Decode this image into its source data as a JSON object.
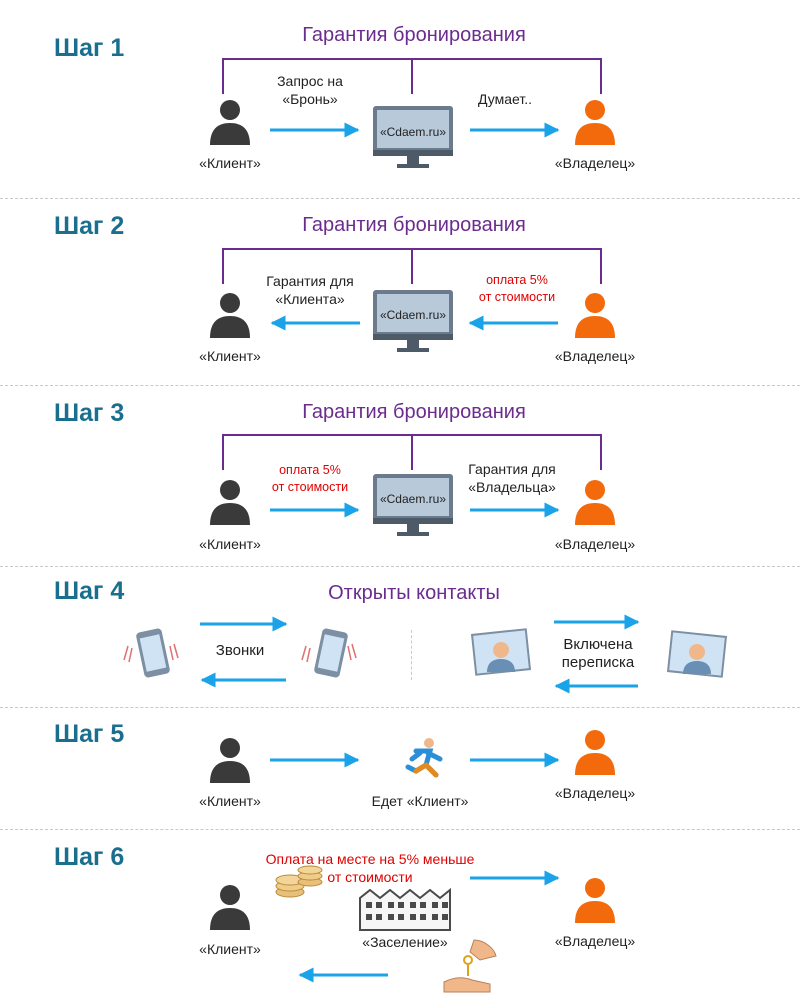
{
  "steps": [
    {
      "label": "Шаг 1",
      "title": "Гарантия бронирования",
      "left_text": [
        "Запрос на",
        "«Бронь»"
      ],
      "right_text": "Думает..",
      "client": "«Клиент»",
      "owner": "«Владелец»",
      "monitor": "«Cdaem.ru»"
    },
    {
      "label": "Шаг 2",
      "title": "Гарантия бронирования",
      "left_text": [
        "Гарантия для",
        "«Клиента»"
      ],
      "right_text": [
        "оплата 5%",
        "от стоимости"
      ],
      "client": "«Клиент»",
      "owner": "«Владелец»",
      "monitor": "«Cdaem.ru»"
    },
    {
      "label": "Шаг 3",
      "title": "Гарантия бронирования",
      "left_text": [
        "оплата 5%",
        "от стоимости"
      ],
      "right_text": [
        "Гарантия для",
        "«Владельца»"
      ],
      "client": "«Клиент»",
      "owner": "«Владелец»",
      "monitor": "«Cdaem.ru»"
    },
    {
      "label": "Шаг 4",
      "title": "Открыты контакты",
      "left_text": "Звонки",
      "right_text": [
        "Включена",
        "переписка"
      ]
    },
    {
      "label": "Шаг 5",
      "mid_text": "Едет «Клиент»",
      "client": "«Клиент»",
      "owner": "«Владелец»"
    },
    {
      "label": "Шаг 6",
      "pay_text": [
        "Оплата на месте на 5% меньше",
        "от стоимости"
      ],
      "mid_text": "«Заселение»",
      "client": "«Клиент»",
      "owner": "«Владелец»"
    }
  ],
  "colors": {
    "step": "#1a6e8e",
    "title": "#6b2c8f",
    "arrow": "#1aa3e8",
    "client": "#3a3a3a",
    "owner": "#f26a0c",
    "red": "#e00000"
  }
}
